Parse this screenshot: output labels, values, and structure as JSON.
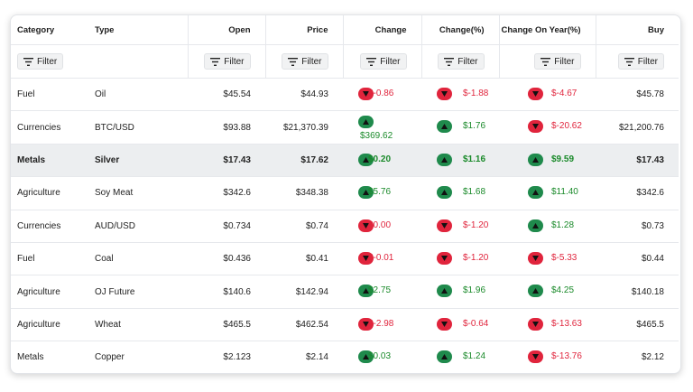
{
  "columns": [
    {
      "key": "category",
      "label": "Category",
      "align": "l"
    },
    {
      "key": "type",
      "label": "Type",
      "align": "l"
    },
    {
      "key": "open",
      "label": "Open",
      "align": "r"
    },
    {
      "key": "price",
      "label": "Price",
      "align": "r"
    },
    {
      "key": "change",
      "label": "Change",
      "align": "r"
    },
    {
      "key": "change_pct",
      "label": "Change(%)",
      "align": "r"
    },
    {
      "key": "change_year",
      "label": "Change On Year(%)",
      "align": "r"
    },
    {
      "key": "buy",
      "label": "Buy",
      "align": "r"
    }
  ],
  "filter_label": "Filter",
  "colors": {
    "up": "#1f8a4c",
    "down": "#e0243c",
    "up_text": "#1a8a2a",
    "highlight_row": "#eceef0"
  },
  "rows": [
    {
      "category": "Fuel",
      "type": "Oil",
      "open": "$45.54",
      "price": "$44.93",
      "change": {
        "dir": "down",
        "text": "$-0.86"
      },
      "change_pct": {
        "dir": "down",
        "text": "$-1.88"
      },
      "change_year": {
        "dir": "down",
        "text": "$-4.67"
      },
      "buy": "$45.78"
    },
    {
      "category": "Currencies",
      "type": "BTC/USD",
      "open": "$93.88",
      "price": "$21,370.39",
      "change": {
        "dir": "up",
        "text": "$369.62",
        "wrap": true
      },
      "change_pct": {
        "dir": "up",
        "text": "$1.76"
      },
      "change_year": {
        "dir": "down",
        "text": "$-20.62"
      },
      "buy": "$21,200.76"
    },
    {
      "category": "Metals",
      "type": "Silver",
      "open": "$17.43",
      "price": "$17.62",
      "highlight": true,
      "change": {
        "dir": "up",
        "text": "$0.20"
      },
      "change_pct": {
        "dir": "up",
        "text": "$1.16"
      },
      "change_year": {
        "dir": "up",
        "text": "$9.59"
      },
      "buy": "$17.43"
    },
    {
      "category": "Agriculture",
      "type": "Soy Meat",
      "open": "$342.6",
      "price": "$348.38",
      "change": {
        "dir": "up",
        "text": "$5.76"
      },
      "change_pct": {
        "dir": "up",
        "text": "$1.68"
      },
      "change_year": {
        "dir": "up",
        "text": "$11.40"
      },
      "buy": "$342.6"
    },
    {
      "category": "Currencies",
      "type": "AUD/USD",
      "open": "$0.734",
      "price": "$0.74",
      "change": {
        "dir": "down",
        "text": "$0.00"
      },
      "change_pct": {
        "dir": "down",
        "text": "$-1.20"
      },
      "change_year": {
        "dir": "up",
        "text": "$1.28"
      },
      "buy": "$0.73"
    },
    {
      "category": "Fuel",
      "type": "Coal",
      "open": "$0.436",
      "price": "$0.41",
      "change": {
        "dir": "down",
        "text": "$-0.01"
      },
      "change_pct": {
        "dir": "down",
        "text": "$-1.20"
      },
      "change_year": {
        "dir": "down",
        "text": "$-5.33"
      },
      "buy": "$0.44"
    },
    {
      "category": "Agriculture",
      "type": "OJ Future",
      "open": "$140.6",
      "price": "$142.94",
      "change": {
        "dir": "up",
        "text": "$2.75"
      },
      "change_pct": {
        "dir": "up",
        "text": "$1.96"
      },
      "change_year": {
        "dir": "up",
        "text": "$4.25"
      },
      "buy": "$140.18"
    },
    {
      "category": "Agriculture",
      "type": "Wheat",
      "open": "$465.5",
      "price": "$462.54",
      "change": {
        "dir": "down",
        "text": "$-2.98"
      },
      "change_pct": {
        "dir": "down",
        "text": "$-0.64"
      },
      "change_year": {
        "dir": "down",
        "text": "$-13.63"
      },
      "buy": "$465.5"
    },
    {
      "category": "Metals",
      "type": "Copper",
      "open": "$2.123",
      "price": "$2.14",
      "change": {
        "dir": "up",
        "text": "$0.03"
      },
      "change_pct": {
        "dir": "up",
        "text": "$1.24"
      },
      "change_year": {
        "dir": "down",
        "text": "$-13.76"
      },
      "buy": "$2.12"
    }
  ]
}
